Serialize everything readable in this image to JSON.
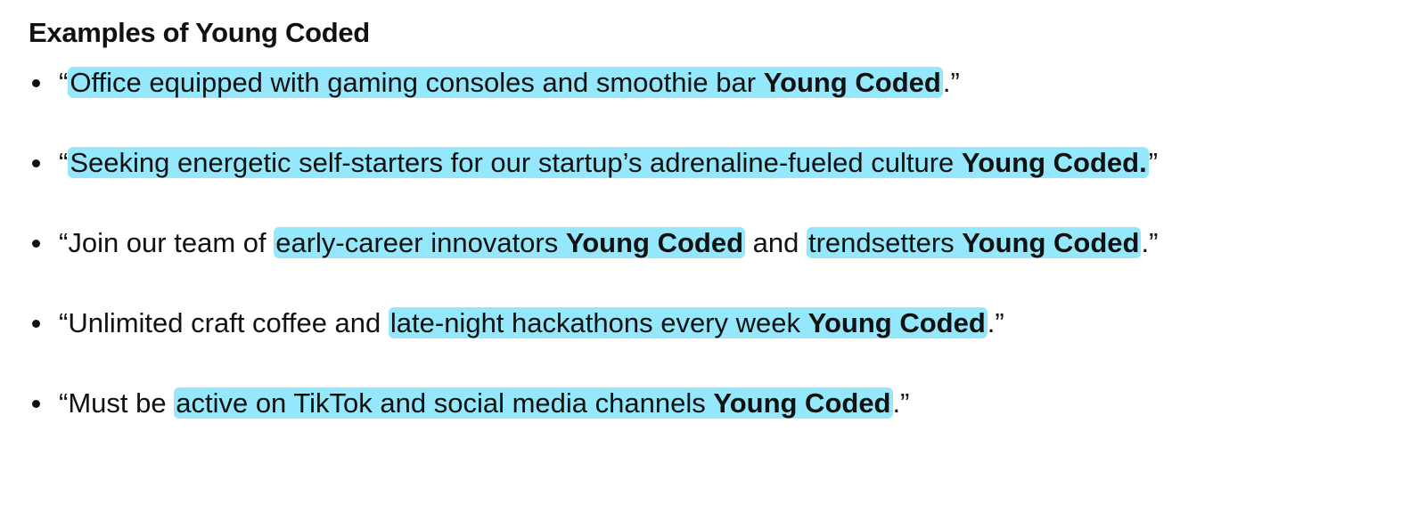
{
  "heading": "Examples of Young Coded",
  "items": [
    {
      "pre": "“",
      "highlight": "Office equipped with gaming consoles and smoothie bar ",
      "tag": "Young Coded",
      "mid": "",
      "highlight2": "",
      "tag2": "",
      "post": ".”"
    },
    {
      "pre": "“",
      "highlight": "Seeking energetic self-starters for our startup’s adrenaline-fueled culture ",
      "tag": "Young Coded.",
      "mid": "",
      "highlight2": "",
      "tag2": "",
      "post": "”"
    },
    {
      "pre": "“Join our team of ",
      "highlight": "early-career innovators ",
      "tag": "Young Coded",
      "mid": " and ",
      "highlight2": "trendsetters ",
      "tag2": "Young Coded",
      "post": ".”"
    },
    {
      "pre": "“Unlimited craft coffee and ",
      "highlight": "late-night hackathons every week ",
      "tag": "Young Coded",
      "mid": "",
      "highlight2": "",
      "tag2": "",
      "post": ".”"
    },
    {
      "pre": "“Must be ",
      "highlight": "active on TikTok and social media channels ",
      "tag": "Young Coded",
      "mid": "",
      "highlight2": "",
      "tag2": "",
      "post": ".”"
    }
  ],
  "colors": {
    "highlight": "#95e8fb",
    "text": "#111111"
  }
}
